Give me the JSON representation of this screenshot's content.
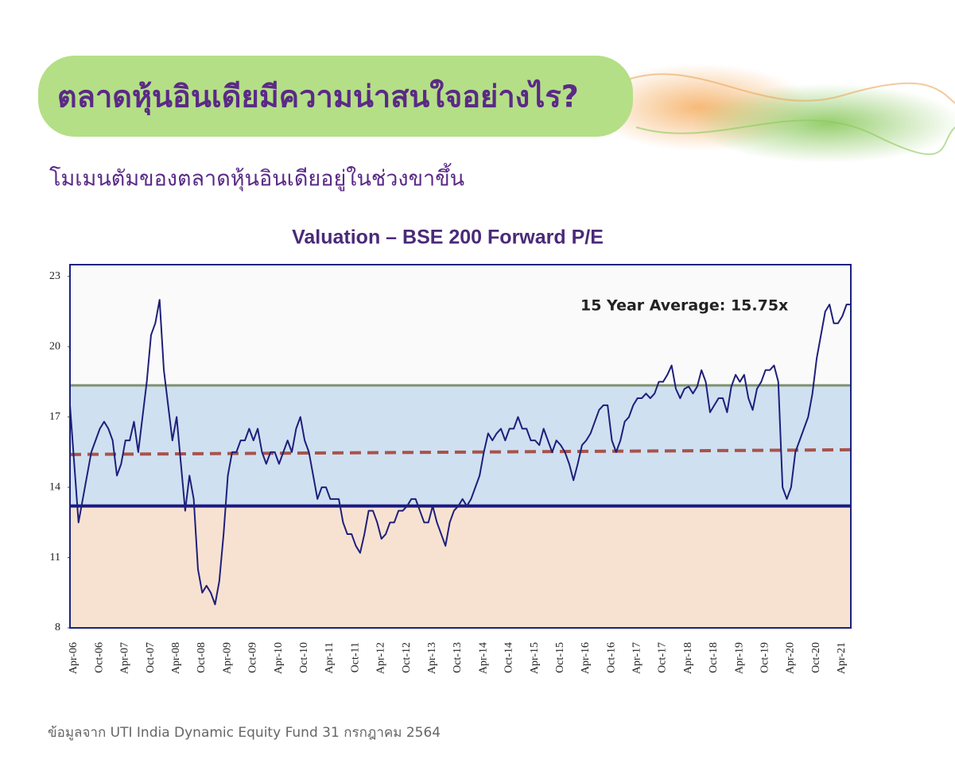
{
  "header": {
    "title": "ตลาดหุ้นอินเดียมีความน่าสนใจอย่างไร?",
    "subtitle": "โมเมนตัมของตลาดหุ้นอินเดียอยู่ในช่วงขาขึ้น"
  },
  "chart_data": {
    "type": "line",
    "title": "Valuation – BSE 200 Forward P/E",
    "annotation": "15 Year Average: 15.75x",
    "ylim": [
      8,
      23.5
    ],
    "yticks": [
      8,
      11,
      14,
      17,
      20,
      23
    ],
    "bands": [
      {
        "from": 8,
        "to": 13.2,
        "color": "#f7e2d2"
      },
      {
        "from": 13.2,
        "to": 18.35,
        "color": "#cfe0f1"
      },
      {
        "from": 18.35,
        "to": 23.5,
        "color": "#fafafa"
      }
    ],
    "upper_line": {
      "value": 18.35,
      "color": "#7f9070"
    },
    "lower_line": {
      "value": 13.2,
      "color": "#1a1a80"
    },
    "average_line": {
      "start": 15.4,
      "end": 15.6,
      "color": "#a8534b"
    },
    "categories": [
      "Apr-06",
      null,
      null,
      null,
      null,
      null,
      "Oct-06",
      null,
      null,
      null,
      null,
      null,
      "Apr-07",
      null,
      null,
      null,
      null,
      null,
      "Oct-07",
      null,
      null,
      null,
      null,
      null,
      "Apr-08",
      null,
      null,
      null,
      null,
      null,
      "Oct-08",
      null,
      null,
      null,
      null,
      null,
      "Apr-09",
      null,
      null,
      null,
      null,
      null,
      "Oct-09",
      null,
      null,
      null,
      null,
      null,
      "Apr-10",
      null,
      null,
      null,
      null,
      null,
      "Oct-10",
      null,
      null,
      null,
      null,
      null,
      "Apr-11",
      null,
      null,
      null,
      null,
      null,
      "Oct-11",
      null,
      null,
      null,
      null,
      null,
      "Apr-12",
      null,
      null,
      null,
      null,
      null,
      "Oct-12",
      null,
      null,
      null,
      null,
      null,
      "Apr-13",
      null,
      null,
      null,
      null,
      null,
      "Oct-13",
      null,
      null,
      null,
      null,
      null,
      "Apr-14",
      null,
      null,
      null,
      null,
      null,
      "Oct-14",
      null,
      null,
      null,
      null,
      null,
      "Apr-15",
      null,
      null,
      null,
      null,
      null,
      "Oct-15",
      null,
      null,
      null,
      null,
      null,
      "Apr-16",
      null,
      null,
      null,
      null,
      null,
      "Oct-16",
      null,
      null,
      null,
      null,
      null,
      "Apr-17",
      null,
      null,
      null,
      null,
      null,
      "Oct-17",
      null,
      null,
      null,
      null,
      null,
      "Apr-18",
      null,
      null,
      null,
      null,
      null,
      "Oct-18",
      null,
      null,
      null,
      null,
      null,
      "Apr-19",
      null,
      null,
      null,
      null,
      null,
      "Oct-19",
      null,
      null,
      null,
      null,
      null,
      "Apr-20",
      null,
      null,
      null,
      null,
      null,
      "Oct-20",
      null,
      null,
      null,
      null,
      null,
      "Apr-21",
      null,
      null,
      null
    ],
    "series": [
      {
        "color": "#1f1f7a",
        "values": [
          17.5,
          15,
          12.5,
          13.5,
          14.5,
          15.5,
          16,
          16.5,
          16.8,
          16.5,
          16,
          14.5,
          15,
          16,
          16,
          16.8,
          15.5,
          17,
          18.5,
          20.5,
          21,
          22,
          19,
          17.5,
          16,
          17,
          15,
          13,
          14.5,
          13.5,
          10.5,
          9.5,
          9.8,
          9.5,
          9,
          10,
          12,
          14.5,
          15.5,
          15.5,
          16,
          16,
          16.5,
          16,
          16.5,
          15.5,
          15,
          15.5,
          15.5,
          15,
          15.5,
          16,
          15.5,
          16.5,
          17,
          16,
          15.5,
          14.5,
          13.5,
          14,
          14,
          13.5,
          13.5,
          13.5,
          12.5,
          12,
          12,
          11.5,
          11.2,
          12,
          13,
          13,
          12.5,
          11.8,
          12,
          12.5,
          12.5,
          13,
          13,
          13.2,
          13.5,
          13.5,
          13,
          12.5,
          12.5,
          13.2,
          12.5,
          12,
          11.5,
          12.5,
          13,
          13.2,
          13.5,
          13.2,
          13.5,
          14,
          14.5,
          15.5,
          16.3,
          16,
          16.3,
          16.5,
          16,
          16.5,
          16.5,
          17,
          16.5,
          16.5,
          16,
          16,
          15.8,
          16.5,
          16,
          15.5,
          16,
          15.8,
          15.5,
          15,
          14.3,
          15,
          15.8,
          16,
          16.3,
          16.8,
          17.3,
          17.5,
          17.5,
          16,
          15.5,
          16,
          16.8,
          17,
          17.5,
          17.8,
          17.8,
          18,
          17.8,
          18,
          18.5,
          18.5,
          18.8,
          19.2,
          18.2,
          17.8,
          18.2,
          18.3,
          18,
          18.3,
          19,
          18.5,
          17.2,
          17.5,
          17.8,
          17.8,
          17.2,
          18.3,
          18.8,
          18.5,
          18.8,
          17.8,
          17.3,
          18.2,
          18.5,
          19,
          19,
          19.2,
          18.5,
          14,
          13.5,
          14,
          15.5,
          16,
          16.5,
          17,
          18,
          19.5,
          20.5,
          21.5,
          21.8,
          21,
          21,
          21.3,
          21.8,
          21.8
        ]
      }
    ]
  },
  "footer": {
    "source": "ข้อมูลจาก UTI India Dynamic Equity Fund 31 กรกฎาคม 2564"
  }
}
